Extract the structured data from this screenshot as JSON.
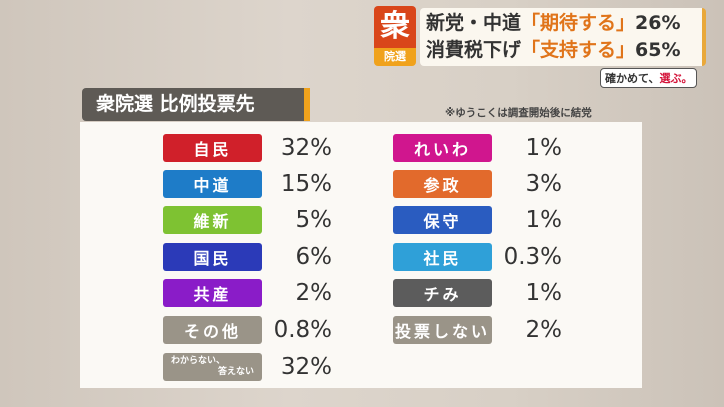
{
  "header": {
    "badge_big": "衆",
    "badge_small": "院選",
    "line1_a": "新党・中道",
    "line1_b": "「期待する」",
    "line1_c": "26%",
    "line2_a": "消費税下げ",
    "line2_b": "「支持する」",
    "line2_c": "65%",
    "slogan_a": "確かめて、",
    "slogan_b": "選ぶ。"
  },
  "title": "衆院選 比例投票先",
  "note": "※ゆうこくは調査開始後に結党",
  "left": [
    {
      "label": "自民",
      "value": "32%",
      "color": "#d0202a"
    },
    {
      "label": "中道",
      "value": "15%",
      "color": "#1e7cc8"
    },
    {
      "label": "維新",
      "value": "5%",
      "color": "#7ec232"
    },
    {
      "label": "国民",
      "value": "6%",
      "color": "#2b3ab8"
    },
    {
      "label": "共産",
      "value": "2%",
      "color": "#8a1cc8"
    },
    {
      "label": "その他",
      "value": "0.8%",
      "color": "#9a9488"
    },
    {
      "label": "わからない、",
      "label2": "答えない",
      "value": "32%",
      "color": "#9a9488"
    }
  ],
  "right": [
    {
      "label": "れいわ",
      "value": "1%",
      "color": "#d0168e"
    },
    {
      "label": "参政",
      "value": "3%",
      "color": "#e26a2c"
    },
    {
      "label": "保守",
      "value": "1%",
      "color": "#2a5cc0"
    },
    {
      "label": "社民",
      "value": "0.3%",
      "color": "#2fa0d8"
    },
    {
      "label": "チみ",
      "value": "1%",
      "color": "#5c5c5c"
    },
    {
      "label": "投票しない",
      "value": "2%",
      "color": "#9a9488"
    }
  ]
}
